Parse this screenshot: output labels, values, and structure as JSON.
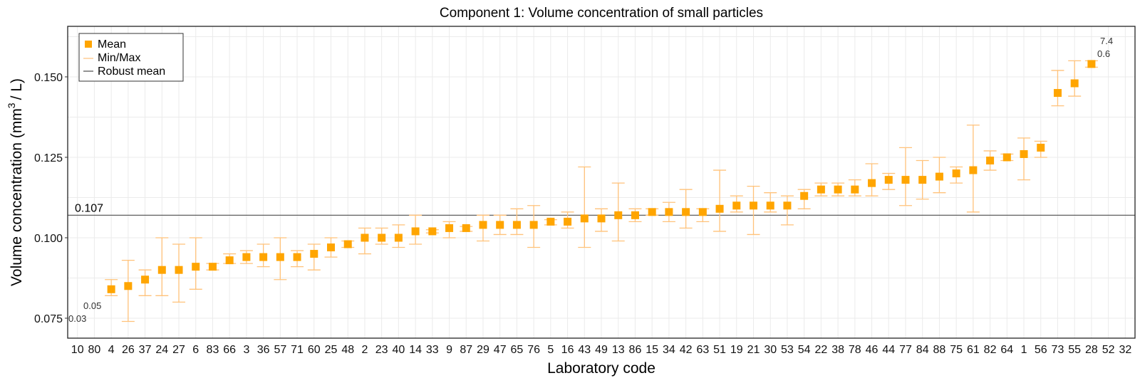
{
  "chart_data": {
    "type": "scatter",
    "title": "Component 1: Volume concentration of small particles",
    "xlabel": "Laboratory code",
    "ylabel": "Volume concentration (mm",
    "ylabel_sup": "3",
    "ylabel_tail": "/ L)",
    "ylim": [
      0.0688,
      0.1657
    ],
    "yticks": [
      0.075,
      0.1,
      0.125,
      0.15
    ],
    "ytick_labels": [
      "0.075",
      "0.100",
      "0.125",
      "0.150"
    ],
    "grid": true,
    "legend_position": "top-left",
    "legend": [
      "Mean",
      "Min/Max",
      "Robust mean"
    ],
    "colors": {
      "mean": "#FFA500",
      "minmax": "#FFC27A",
      "robust": "#4d4d4d"
    },
    "robust_mean": 0.107,
    "robust_mean_label": "0.107",
    "categories": [
      "10",
      "80",
      "4",
      "26",
      "37",
      "24",
      "27",
      "6",
      "83",
      "66",
      "3",
      "36",
      "57",
      "71",
      "60",
      "25",
      "48",
      "2",
      "23",
      "40",
      "14",
      "33",
      "9",
      "87",
      "29",
      "47",
      "65",
      "76",
      "5",
      "16",
      "43",
      "49",
      "13",
      "86",
      "15",
      "34",
      "42",
      "63",
      "51",
      "19",
      "21",
      "30",
      "53",
      "54",
      "22",
      "38",
      "78",
      "46",
      "44",
      "77",
      "84",
      "88",
      "75",
      "61",
      "82",
      "64",
      "1",
      "56",
      "73",
      "55",
      "28",
      "52",
      "32"
    ],
    "mean": [
      0.03,
      0.05,
      0.084,
      0.085,
      0.087,
      0.09,
      0.09,
      0.091,
      0.091,
      0.093,
      0.094,
      0.094,
      0.094,
      0.094,
      0.095,
      0.097,
      0.098,
      0.1,
      0.1,
      0.1,
      0.102,
      0.102,
      0.103,
      0.103,
      0.104,
      0.104,
      0.104,
      0.104,
      0.105,
      0.105,
      0.106,
      0.106,
      0.107,
      0.107,
      0.108,
      0.108,
      0.108,
      0.108,
      0.109,
      0.11,
      0.11,
      0.11,
      0.11,
      0.113,
      0.115,
      0.115,
      0.115,
      0.117,
      0.118,
      0.118,
      0.118,
      0.119,
      0.12,
      0.121,
      0.124,
      0.125,
      0.126,
      0.128,
      0.145,
      0.148,
      0.154,
      0.6,
      7.4
    ],
    "min": [
      null,
      null,
      0.082,
      0.074,
      0.082,
      0.082,
      0.08,
      0.084,
      0.09,
      0.092,
      0.092,
      0.091,
      0.087,
      0.091,
      0.09,
      0.094,
      0.097,
      0.095,
      0.098,
      0.097,
      0.098,
      0.1015,
      0.1,
      0.102,
      0.099,
      0.101,
      0.101,
      0.097,
      0.104,
      0.103,
      0.097,
      0.102,
      0.099,
      0.105,
      0.107,
      0.105,
      0.103,
      0.105,
      0.102,
      0.108,
      0.101,
      0.108,
      0.104,
      0.109,
      0.113,
      0.113,
      0.113,
      0.113,
      0.115,
      0.11,
      0.112,
      0.114,
      0.117,
      0.108,
      0.121,
      0.124,
      0.118,
      0.125,
      0.141,
      0.144,
      0.153,
      null,
      null
    ],
    "max": [
      null,
      null,
      0.087,
      0.093,
      0.09,
      0.1,
      0.098,
      0.1,
      0.092,
      0.095,
      0.096,
      0.098,
      0.1,
      0.096,
      0.098,
      0.1,
      0.099,
      0.103,
      0.103,
      0.104,
      0.107,
      0.1025,
      0.105,
      0.1035,
      0.107,
      0.107,
      0.109,
      0.11,
      0.1056,
      0.108,
      0.122,
      0.109,
      0.117,
      0.109,
      0.109,
      0.111,
      0.115,
      0.109,
      0.121,
      0.113,
      0.116,
      0.114,
      0.113,
      0.115,
      0.117,
      0.117,
      0.118,
      0.123,
      0.12,
      0.128,
      0.124,
      0.125,
      0.122,
      0.135,
      0.127,
      0.126,
      0.131,
      0.13,
      0.152,
      0.155,
      0.155,
      null,
      null
    ],
    "offscale_labels": [
      {
        "code": "10",
        "text": "0.03"
      },
      {
        "code": "80",
        "text": "0.05"
      },
      {
        "code": "52",
        "text": "0.6"
      },
      {
        "code": "32",
        "text": "7.4"
      }
    ]
  }
}
